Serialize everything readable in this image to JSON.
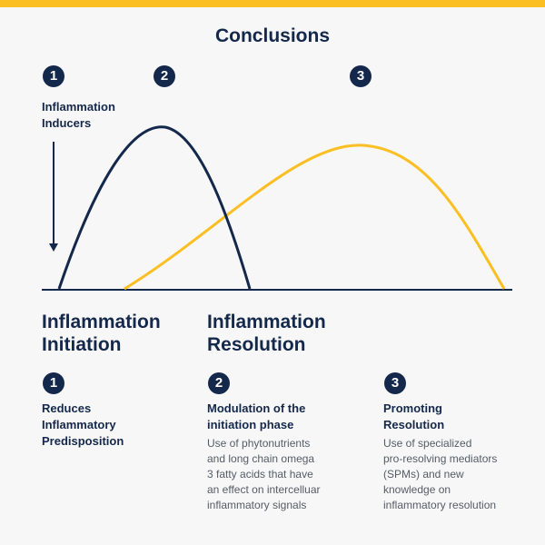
{
  "title": "Conclusions",
  "colors": {
    "navy": "#14284b",
    "gold": "#fbbf23"
  },
  "top_badges": [
    "1",
    "2",
    "3"
  ],
  "inducers_label": {
    "line1": "Inflammation",
    "line2": "Inducers"
  },
  "curves": [
    {
      "name": "initiation-curve",
      "color": "#14284b"
    },
    {
      "name": "resolution-curve",
      "color": "#fbbf23"
    }
  ],
  "phases": {
    "initiation": {
      "line1": "Inflammation",
      "line2": "Initiation"
    },
    "resolution": {
      "line1": "Inflammation",
      "line2": "Resolution"
    }
  },
  "steps": [
    {
      "number": "1",
      "title": [
        "Reduces",
        "Inflammatory",
        "Predisposition"
      ],
      "description": []
    },
    {
      "number": "2",
      "title": [
        "Modulation of the",
        "initiation phase"
      ],
      "description": [
        "Use of phytonutrients",
        "and long chain omega",
        "3 fatty acids that have",
        "an effect on intercelluar",
        "inflammatory signals"
      ]
    },
    {
      "number": "3",
      "title": [
        "Promoting",
        "Resolution"
      ],
      "description": [
        "Use of specialized",
        "pro-resolving mediators",
        "(SPMs) and new",
        "knowledge on",
        "inflammatory resolution"
      ]
    }
  ]
}
